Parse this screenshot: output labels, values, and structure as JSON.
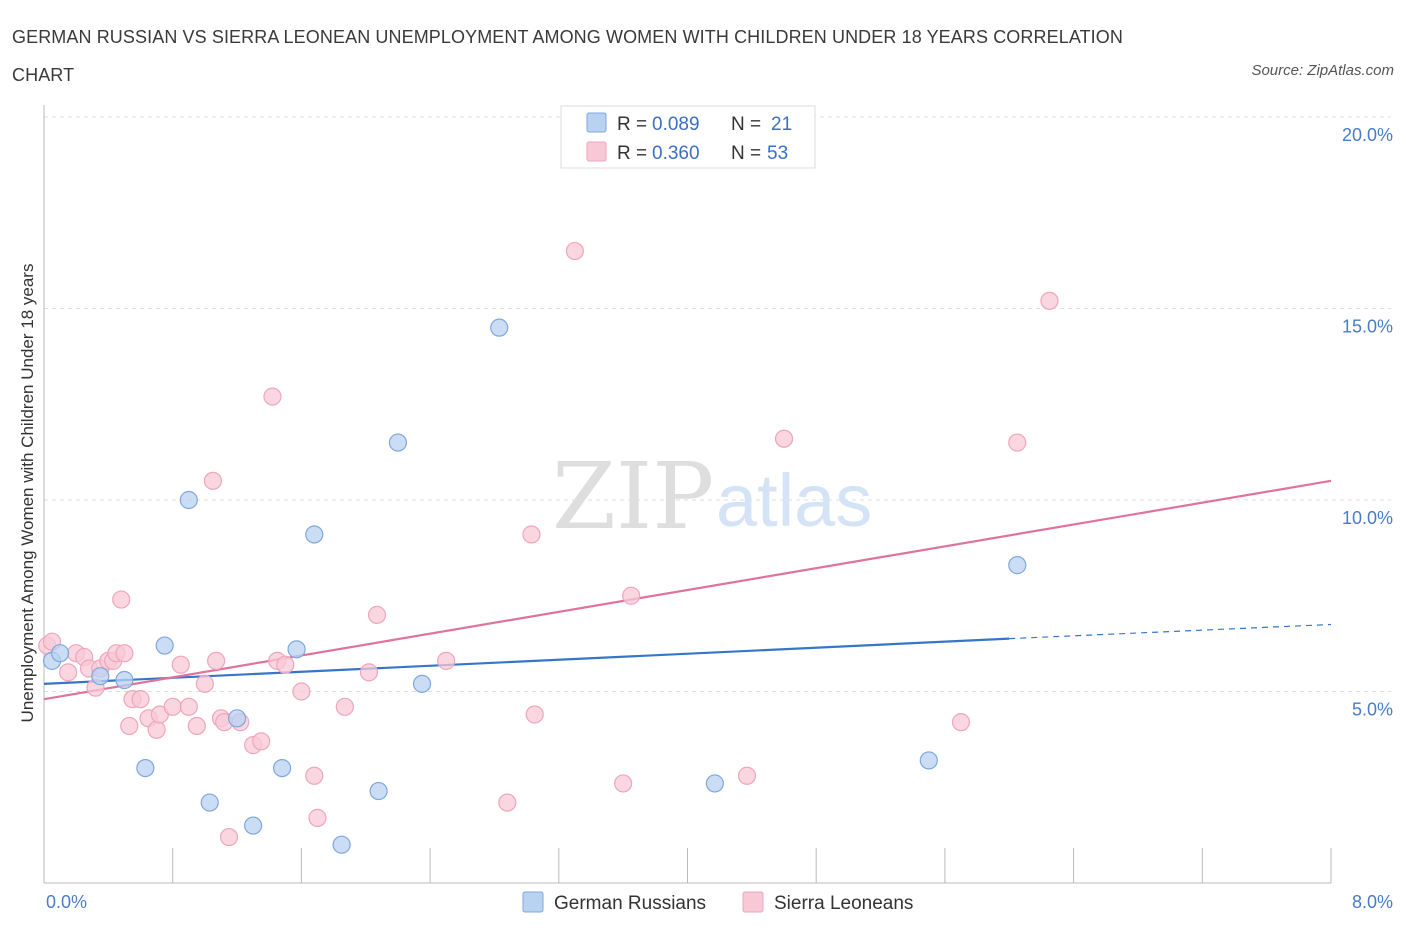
{
  "title": "GERMAN RUSSIAN VS SIERRA LEONEAN UNEMPLOYMENT AMONG WOMEN WITH CHILDREN UNDER 18 YEARS CORRELATION CHART",
  "source": "Source: ZipAtlas.com",
  "watermark": {
    "zip": "ZIP",
    "atlas": "atlas"
  },
  "legend_top": {
    "rows": [
      {
        "r_label": "R =",
        "r_value": "0.089",
        "n_label": "N =",
        "n_value": "21"
      },
      {
        "r_label": "R =",
        "r_value": "0.360",
        "n_label": "N =",
        "n_value": "53"
      }
    ]
  },
  "legend_bottom": {
    "items": [
      "German Russians",
      "Sierra Leoneans"
    ]
  },
  "colors": {
    "blue_fill": "#b9d2f2",
    "blue_stroke": "#7fa8dc",
    "blue_line": "#3676c9",
    "pink_fill": "#f8c8d7",
    "pink_stroke": "#eea6bc",
    "pink_line": "#e0739b",
    "grid": "#dddddd",
    "tick_text": "#4a7cc9"
  },
  "chart_data": {
    "type": "scatter",
    "title": "GERMAN RUSSIAN VS SIERRA LEONEAN UNEMPLOYMENT AMONG WOMEN WITH CHILDREN UNDER 18 YEARS CORRELATION CHART",
    "xlabel": "",
    "ylabel": "Unemployment Among Women with Children Under 18 years",
    "xlim": [
      0,
      8
    ],
    "ylim": [
      0,
      20
    ],
    "x_tick_labels": [
      "0.0%",
      "8.0%"
    ],
    "y_tick_labels": [
      "5.0%",
      "10.0%",
      "15.0%",
      "20.0%"
    ],
    "y_tick_values": [
      5,
      10,
      15,
      20
    ],
    "grid": true,
    "legend_position": "top-center",
    "series": [
      {
        "name": "German Russians",
        "R": 0.089,
        "N": 21,
        "points": [
          [
            0.05,
            5.8
          ],
          [
            0.35,
            5.4
          ],
          [
            0.5,
            5.3
          ],
          [
            0.63,
            3.0
          ],
          [
            0.75,
            6.2
          ],
          [
            0.9,
            10.0
          ],
          [
            1.03,
            2.1
          ],
          [
            1.2,
            4.3
          ],
          [
            1.3,
            1.5
          ],
          [
            1.48,
            3.0
          ],
          [
            1.57,
            6.1
          ],
          [
            1.68,
            9.1
          ],
          [
            1.85,
            1.0
          ],
          [
            2.08,
            2.4
          ],
          [
            2.2,
            11.5
          ],
          [
            2.35,
            5.2
          ],
          [
            2.83,
            14.5
          ],
          [
            4.17,
            2.6
          ],
          [
            5.5,
            3.2
          ],
          [
            6.05,
            8.3
          ],
          [
            0.1,
            6.0
          ]
        ],
        "trend": {
          "x1": 0.0,
          "y1": 5.2,
          "x2": 6.0,
          "y2": 6.38,
          "dashed_to_x": 8.0,
          "dashed_to_y": 6.75
        }
      },
      {
        "name": "Sierra Leoneans",
        "R": 0.36,
        "N": 53,
        "points": [
          [
            0.02,
            6.2
          ],
          [
            0.05,
            6.3
          ],
          [
            0.15,
            5.5
          ],
          [
            0.2,
            6.0
          ],
          [
            0.25,
            5.9
          ],
          [
            0.28,
            5.6
          ],
          [
            0.32,
            5.1
          ],
          [
            0.35,
            5.6
          ],
          [
            0.4,
            5.8
          ],
          [
            0.43,
            5.8
          ],
          [
            0.45,
            6.0
          ],
          [
            0.5,
            6.0
          ],
          [
            0.55,
            4.8
          ],
          [
            0.53,
            4.1
          ],
          [
            0.48,
            7.4
          ],
          [
            0.6,
            4.8
          ],
          [
            0.65,
            4.3
          ],
          [
            0.7,
            4.0
          ],
          [
            0.72,
            4.4
          ],
          [
            0.8,
            4.6
          ],
          [
            0.85,
            5.7
          ],
          [
            0.9,
            4.6
          ],
          [
            0.95,
            4.1
          ],
          [
            1.0,
            5.2
          ],
          [
            1.05,
            10.5
          ],
          [
            1.07,
            5.8
          ],
          [
            1.1,
            4.3
          ],
          [
            1.12,
            4.2
          ],
          [
            1.15,
            1.2
          ],
          [
            1.22,
            4.2
          ],
          [
            1.3,
            3.6
          ],
          [
            1.35,
            3.7
          ],
          [
            1.42,
            12.7
          ],
          [
            1.45,
            5.8
          ],
          [
            1.5,
            5.7
          ],
          [
            1.6,
            5.0
          ],
          [
            1.68,
            2.8
          ],
          [
            1.7,
            1.7
          ],
          [
            1.87,
            4.6
          ],
          [
            2.02,
            5.5
          ],
          [
            2.07,
            7.0
          ],
          [
            2.5,
            5.8
          ],
          [
            2.88,
            2.1
          ],
          [
            3.03,
            9.1
          ],
          [
            3.05,
            4.4
          ],
          [
            3.3,
            16.5
          ],
          [
            3.6,
            2.6
          ],
          [
            3.65,
            7.5
          ],
          [
            4.37,
            2.8
          ],
          [
            4.6,
            11.6
          ],
          [
            5.7,
            4.2
          ],
          [
            6.05,
            11.5
          ],
          [
            6.25,
            15.2
          ]
        ],
        "trend": {
          "x1": 0.0,
          "y1": 4.8,
          "x2": 8.0,
          "y2": 10.5
        }
      }
    ]
  }
}
